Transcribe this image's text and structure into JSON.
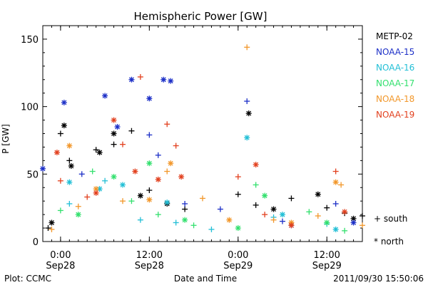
{
  "chart_data": {
    "type": "scatter",
    "title": "Hemispheric Power [GW]",
    "xlabel": "Date and Time",
    "ylabel": "P [GW]",
    "ylim": [
      0,
      160
    ],
    "xlim": [
      -0.1,
      1.7
    ],
    "x_unit": "days since 2011/09/28 00:00 UT",
    "yticks": [
      0,
      50,
      100,
      150
    ],
    "xticks": [
      {
        "x": 0.0,
        "time": "0:00",
        "date": "Sep28"
      },
      {
        "x": 0.5,
        "time": "12:00",
        "date": "Sep28"
      },
      {
        "x": 1.0,
        "time": "0:00",
        "date": "Sep29"
      },
      {
        "x": 1.5,
        "time": "12:00",
        "date": "Sep29"
      }
    ],
    "grid": false,
    "legend_position": "right",
    "markers": {
      "south": "+",
      "north": "*"
    },
    "marker_legend": {
      "south": "+ south",
      "north": "* north"
    },
    "series": [
      {
        "name": "METP-02",
        "color": "#000000",
        "south": [
          [
            -0.07,
            10
          ],
          [
            0.0,
            80
          ],
          [
            0.05,
            60
          ],
          [
            0.2,
            68
          ],
          [
            0.3,
            72
          ],
          [
            0.4,
            82
          ],
          [
            0.5,
            38
          ],
          [
            0.7,
            24
          ],
          [
            1.0,
            35
          ],
          [
            1.1,
            27
          ],
          [
            1.3,
            32
          ],
          [
            1.5,
            25
          ],
          [
            1.6,
            21
          ],
          [
            1.7,
            19
          ]
        ],
        "north": [
          [
            -0.05,
            14
          ],
          [
            0.02,
            86
          ],
          [
            0.06,
            56
          ],
          [
            0.22,
            66
          ],
          [
            0.3,
            80
          ],
          [
            0.45,
            34
          ],
          [
            0.6,
            28
          ],
          [
            1.06,
            95
          ],
          [
            1.2,
            24
          ],
          [
            1.45,
            35
          ],
          [
            1.65,
            17
          ]
        ]
      },
      {
        "name": "NOAA-15",
        "color": "#1c2fc7",
        "south": [
          [
            0.12,
            50
          ],
          [
            0.5,
            79
          ],
          [
            0.55,
            64
          ],
          [
            0.7,
            28
          ],
          [
            0.9,
            24
          ],
          [
            1.05,
            104
          ],
          [
            1.25,
            15
          ],
          [
            1.55,
            28
          ]
        ],
        "north": [
          [
            -0.1,
            54
          ],
          [
            0.02,
            103
          ],
          [
            0.25,
            108
          ],
          [
            0.32,
            85
          ],
          [
            0.4,
            120
          ],
          [
            0.5,
            106
          ],
          [
            0.58,
            120
          ],
          [
            0.62,
            119
          ],
          [
            1.3,
            12
          ],
          [
            1.65,
            14
          ]
        ]
      },
      {
        "name": "NOAA-16",
        "color": "#22bfd6",
        "south": [
          [
            0.05,
            28
          ],
          [
            0.25,
            45
          ],
          [
            0.45,
            16
          ],
          [
            0.65,
            14
          ],
          [
            0.85,
            9
          ],
          [
            1.2,
            18
          ],
          [
            1.5,
            13
          ]
        ],
        "north": [
          [
            0.05,
            44
          ],
          [
            0.22,
            39
          ],
          [
            0.35,
            42
          ],
          [
            0.6,
            29
          ],
          [
            1.05,
            77
          ],
          [
            1.25,
            20
          ],
          [
            1.55,
            9
          ]
        ]
      },
      {
        "name": "NOAA-17",
        "color": "#33e06e",
        "south": [
          [
            0.0,
            23
          ],
          [
            0.18,
            52
          ],
          [
            0.4,
            30
          ],
          [
            0.55,
            20
          ],
          [
            0.75,
            12
          ],
          [
            1.1,
            42
          ],
          [
            1.4,
            22
          ],
          [
            1.6,
            8
          ]
        ],
        "north": [
          [
            0.1,
            20
          ],
          [
            0.3,
            48
          ],
          [
            0.5,
            58
          ],
          [
            0.7,
            16
          ],
          [
            1.0,
            10
          ],
          [
            1.15,
            34
          ],
          [
            1.5,
            14
          ]
        ]
      },
      {
        "name": "NOAA-18",
        "color": "#f2972a",
        "south": [
          [
            -0.05,
            9
          ],
          [
            0.1,
            26
          ],
          [
            0.35,
            30
          ],
          [
            0.6,
            52
          ],
          [
            0.8,
            32
          ],
          [
            1.05,
            144
          ],
          [
            1.2,
            16
          ],
          [
            1.45,
            19
          ],
          [
            1.58,
            42
          ],
          [
            1.7,
            12
          ]
        ],
        "north": [
          [
            0.05,
            71
          ],
          [
            0.2,
            39
          ],
          [
            0.5,
            31
          ],
          [
            0.62,
            58
          ],
          [
            0.95,
            16
          ],
          [
            1.3,
            14
          ],
          [
            1.55,
            44
          ]
        ]
      },
      {
        "name": "NOAA-19",
        "color": "#e2401e",
        "south": [
          [
            0.0,
            45
          ],
          [
            0.15,
            33
          ],
          [
            0.35,
            72
          ],
          [
            0.45,
            122
          ],
          [
            0.6,
            87
          ],
          [
            0.65,
            71
          ],
          [
            1.0,
            48
          ],
          [
            1.15,
            20
          ],
          [
            1.55,
            52
          ]
        ],
        "north": [
          [
            -0.02,
            66
          ],
          [
            0.2,
            36
          ],
          [
            0.3,
            90
          ],
          [
            0.42,
            52
          ],
          [
            0.55,
            46
          ],
          [
            0.68,
            48
          ],
          [
            1.1,
            57
          ],
          [
            1.3,
            12
          ],
          [
            1.6,
            22
          ]
        ]
      }
    ]
  },
  "footer": {
    "left": "Plot: CCMC",
    "right": "2011/09/30 15:50:06"
  }
}
